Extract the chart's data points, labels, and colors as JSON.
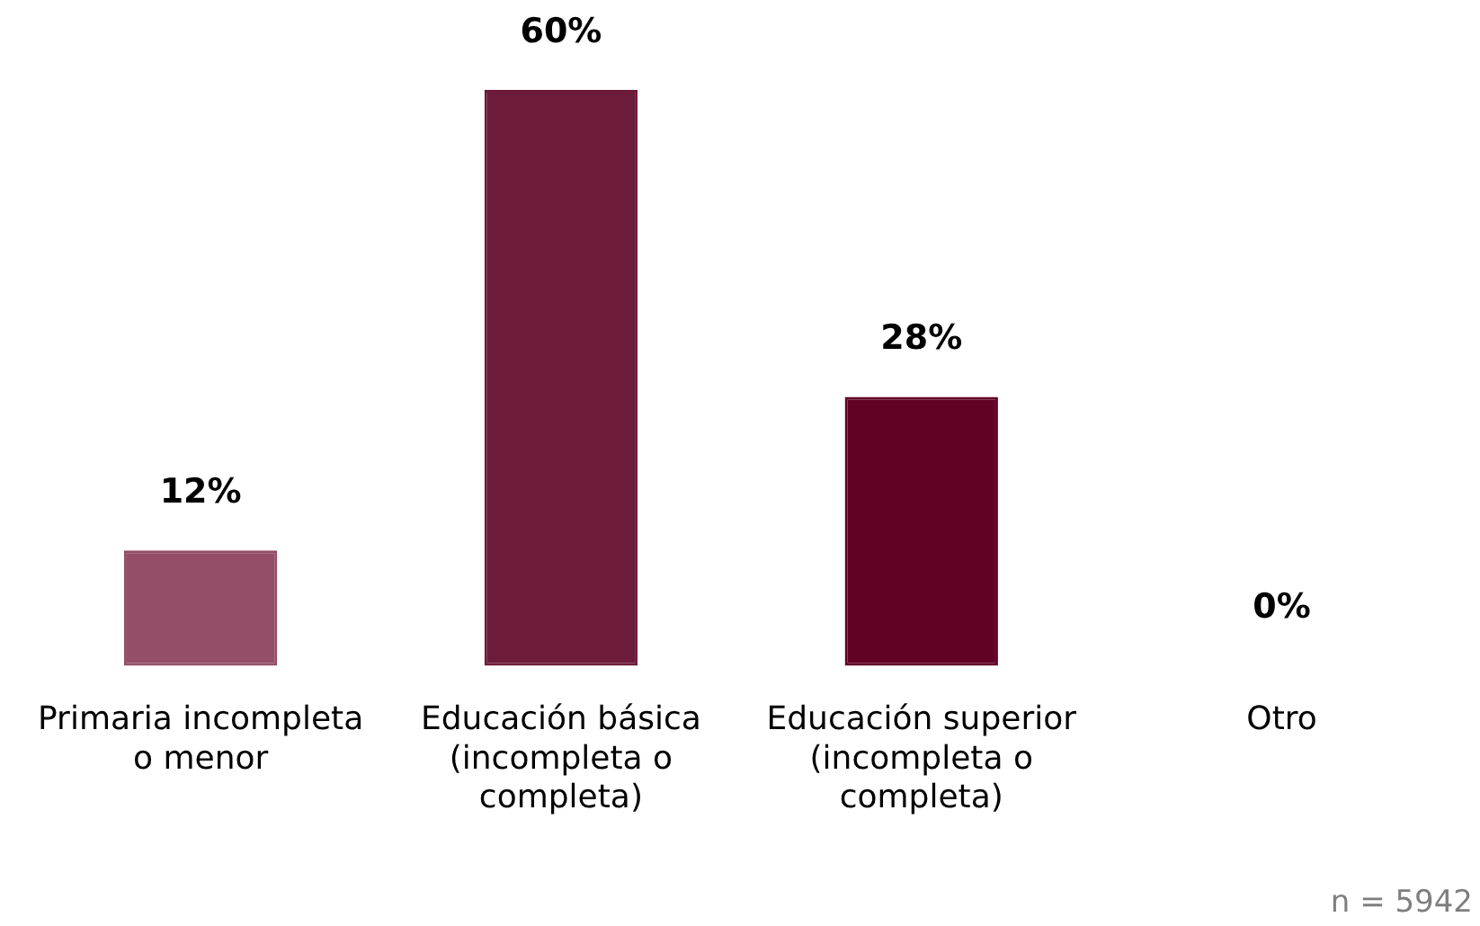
{
  "chart_data": {
    "type": "bar",
    "categories": [
      "Primaria incompleta o menor",
      "Educación básica (incompleta o completa)",
      "Educación superior (incompleta o completa)",
      "Otro"
    ],
    "values": [
      12,
      60,
      28,
      0
    ],
    "colors": [
      "#944e68",
      "#6d1b3b",
      "#620025",
      "#620025"
    ],
    "value_labels": [
      "12%",
      "60%",
      "28%",
      "0%"
    ],
    "relative": false,
    "grid": false,
    "legend": false,
    "annotations": [
      "n = 5942"
    ]
  }
}
